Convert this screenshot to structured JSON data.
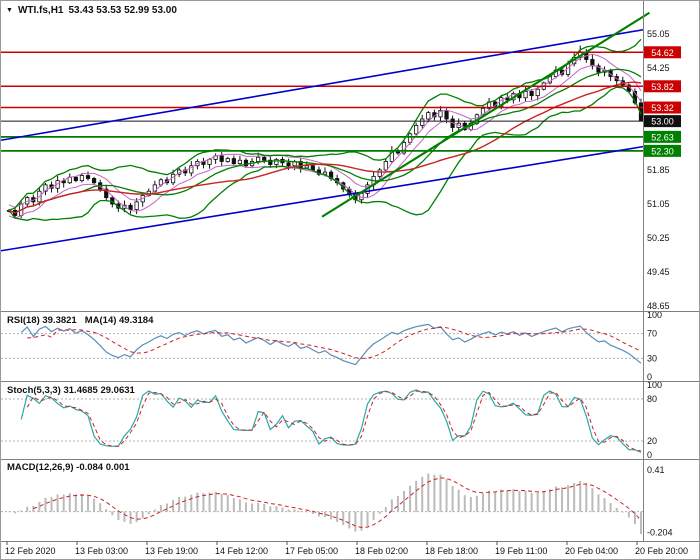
{
  "colors": {
    "background": "#ffffff",
    "candle": "#101010",
    "bollinger": "#008000",
    "ma_slow": "#cc2222",
    "envelope": "#c565c5",
    "trend_blue": "#0000cc",
    "trend_green": "#008000",
    "level_red": "#cc0000",
    "level_green": "#007a00",
    "price_line": "#161616",
    "badge_red": "#cc0000",
    "badge_green": "#008000",
    "badge_black": "#111111",
    "rsi_line": "#5b8db8",
    "rsi_ma": "#cc2222",
    "stoch_k": "#2aa8a8",
    "stoch_d": "#cc2222",
    "macd_hist": "#bbbbbb",
    "macd_signal": "#cc2222",
    "panel_level": "#b0b0b0",
    "separator": "#808080",
    "axis_text": "#111111"
  },
  "title": {
    "marker": "▼",
    "symbol_period": "WTI.fs,H1",
    "ohlc": "53.43 53.53 52.99 53.00"
  },
  "main_chart": {
    "axis_labels": [
      {
        "text": "55.05",
        "price": 55.05
      },
      {
        "text": "54.25",
        "price": 54.25
      },
      {
        "text": "51.85",
        "price": 51.85
      },
      {
        "text": "51.05",
        "price": 51.05
      },
      {
        "text": "50.25",
        "price": 50.25
      },
      {
        "text": "49.45",
        "price": 49.45
      },
      {
        "text": "48.65",
        "price": 48.65
      }
    ],
    "levels": [
      {
        "label": "54.62",
        "price": 54.62,
        "kind": "resistance"
      },
      {
        "label": "53.82",
        "price": 53.82,
        "kind": "resistance"
      },
      {
        "label": "53.32",
        "price": 53.32,
        "kind": "resistance"
      },
      {
        "label": "53.00",
        "price": 53.0,
        "kind": "price"
      },
      {
        "label": "52.63",
        "price": 52.63,
        "kind": "support"
      },
      {
        "label": "52.30",
        "price": 52.3,
        "kind": "support"
      }
    ],
    "trendlines": [
      {
        "name": "ascending-channel-upper",
        "color": "blue",
        "t0": 0.0,
        "p0": 52.55,
        "t1": 1.0,
        "p1": 55.15,
        "width": 1.6
      },
      {
        "name": "ascending-channel-lower",
        "color": "blue",
        "t0": 0.0,
        "p0": 49.95,
        "t1": 1.0,
        "p1": 52.4,
        "width": 1.6
      },
      {
        "name": "acceleration-trendline",
        "color": "green",
        "t0": 0.5,
        "p0": 50.75,
        "t1": 1.01,
        "p1": 55.55,
        "width": 2.2
      }
    ]
  },
  "time_axis": {
    "labels": [
      "12 Feb 2020",
      "13 Feb 03:00",
      "13 Feb 19:00",
      "14 Feb 12:00",
      "17 Feb 05:00",
      "18 Feb 02:00",
      "18 Feb 18:00",
      "19 Feb 11:00",
      "20 Feb 04:00",
      "20 Feb 20:00"
    ]
  },
  "chart_data": {
    "type": "candlestick",
    "symbol": "WTI.fs",
    "timeframe": "H1",
    "title": "WTI.fs,H1 53.43 53.53 52.99 53.00",
    "ylim": [
      48.58,
      55.68
    ],
    "last_quote": {
      "open": 53.43,
      "high": 53.53,
      "low": 52.99,
      "close": 53.0
    },
    "price_levels": {
      "resistance": [
        54.62,
        53.82,
        53.32
      ],
      "support": [
        52.63,
        52.3
      ],
      "current": 53.0
    },
    "x_labels": [
      "12 Feb 2020",
      "13 Feb 03:00",
      "13 Feb 19:00",
      "14 Feb 12:00",
      "17 Feb 05:00",
      "18 Feb 02:00",
      "18 Feb 18:00",
      "19 Feb 11:00",
      "20 Feb 04:00",
      "20 Feb 20:00"
    ],
    "closes": [
      50.9,
      50.78,
      51.05,
      51.2,
      51.1,
      51.35,
      51.5,
      51.42,
      51.6,
      51.55,
      51.68,
      51.6,
      51.72,
      51.65,
      51.55,
      51.4,
      51.2,
      51.05,
      50.95,
      51.02,
      50.92,
      51.1,
      51.25,
      51.35,
      51.5,
      51.62,
      51.55,
      51.75,
      51.85,
      51.78,
      51.95,
      52.05,
      51.98,
      52.1,
      52.18,
      52.05,
      52.12,
      52.0,
      52.08,
      51.95,
      52.05,
      52.15,
      52.08,
      51.98,
      52.1,
      52.02,
      51.95,
      52.05,
      51.9,
      51.95,
      51.85,
      51.75,
      51.8,
      51.65,
      51.55,
      51.4,
      51.28,
      51.15,
      51.3,
      51.5,
      51.7,
      51.85,
      52.05,
      52.3,
      52.25,
      52.5,
      52.7,
      52.9,
      53.05,
      53.2,
      53.1,
      53.25,
      53.05,
      52.85,
      52.95,
      52.8,
      52.95,
      53.15,
      53.3,
      53.45,
      53.35,
      53.55,
      53.5,
      53.65,
      53.55,
      53.7,
      53.6,
      53.75,
      53.9,
      54.05,
      54.2,
      54.1,
      54.35,
      54.5,
      54.62,
      54.45,
      54.3,
      54.15,
      54.2,
      54.05,
      53.95,
      53.85,
      53.7,
      53.43,
      53.0
    ],
    "overlays": [
      {
        "name": "Bollinger Bands",
        "color": "#008000"
      },
      {
        "name": "Slow MA",
        "color": "#cc2222"
      },
      {
        "name": "Envelope",
        "color": "#c565c5"
      }
    ],
    "indicators": {
      "rsi": {
        "label": "RSI(18) 39.3821",
        "ma_label": "MA(14) 49.3184",
        "period": 18,
        "ma_period": 14,
        "current": 39.3821,
        "ma_current": 49.3184,
        "levels": [
          70,
          30
        ],
        "range": [
          0,
          100
        ],
        "axis_labels": [
          100,
          70,
          30,
          0
        ]
      },
      "stoch": {
        "label": "Stoch(5,3,3) 31.4685 29.0631",
        "k_period": 5,
        "slowing": 3,
        "d_period": 3,
        "current_k": 31.4685,
        "current_d": 29.0631,
        "levels": [
          80,
          20
        ],
        "range": [
          0,
          100
        ],
        "axis_labels": [
          100,
          80,
          20,
          0
        ]
      },
      "macd": {
        "label": "MACD(12,26,9) -0.084 0.001",
        "fast": 12,
        "slow": 26,
        "signal": 9,
        "current": -0.084,
        "signal_current": 0.001,
        "range": [
          -0.25,
          0.48
        ],
        "axis_labels": [
          "0.41",
          "-0.204"
        ]
      }
    }
  }
}
